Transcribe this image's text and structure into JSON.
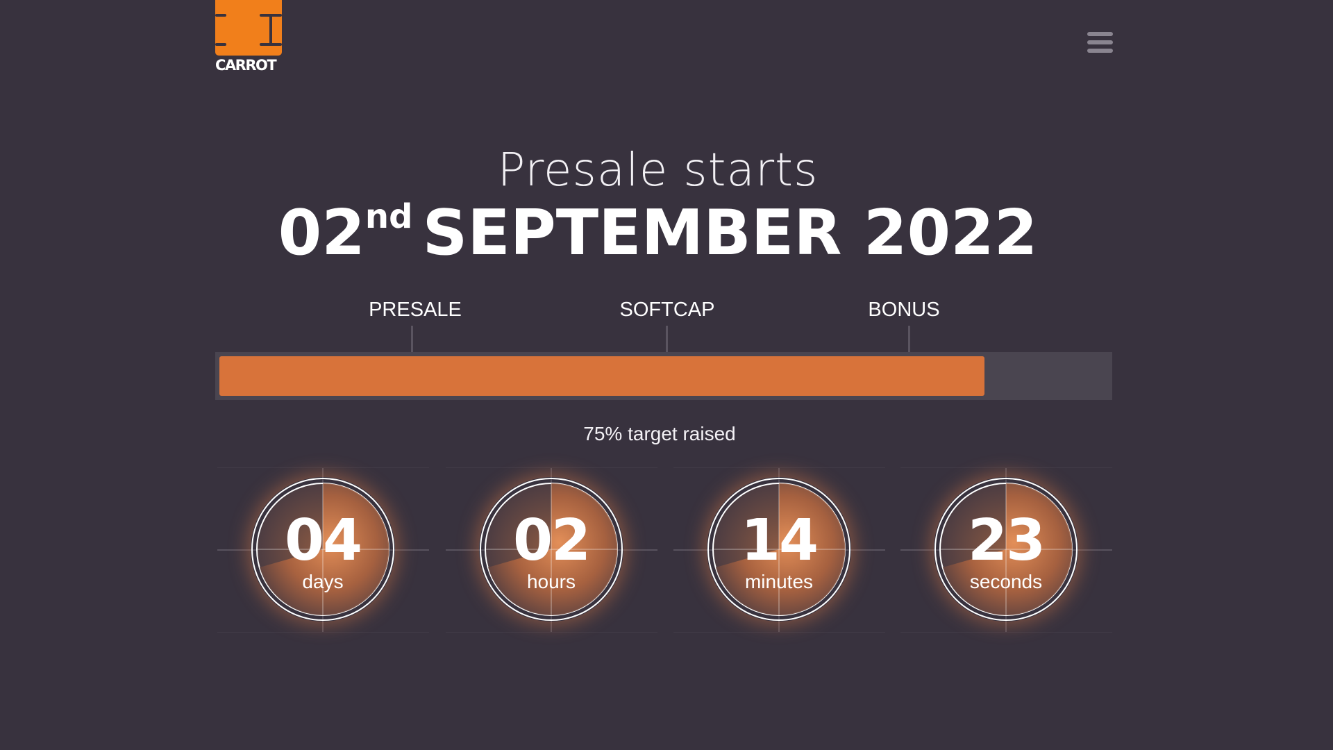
{
  "header": {
    "logo_text": "CARROT",
    "menu_icon": "hamburger-menu-icon"
  },
  "headline": {
    "subtitle": "Presale starts",
    "day": "02",
    "day_suffix": "nd",
    "month_year": "SEPTEMBER 2022"
  },
  "progress": {
    "milestones": [
      {
        "label": "PRESALE"
      },
      {
        "label": "SOFTCAP"
      },
      {
        "label": "BONUS"
      }
    ],
    "percent_raised": 75,
    "caption": "75% target raised",
    "fill_color": "#d8733a",
    "track_color": "#4a4550"
  },
  "countdown": [
    {
      "value": "04",
      "unit": "days"
    },
    {
      "value": "02",
      "unit": "hours"
    },
    {
      "value": "14",
      "unit": "minutes"
    },
    {
      "value": "23",
      "unit": "seconds"
    }
  ],
  "colors": {
    "background": "#38323e",
    "brand_orange": "#f17f1b",
    "accent_orange": "#d8733a"
  }
}
